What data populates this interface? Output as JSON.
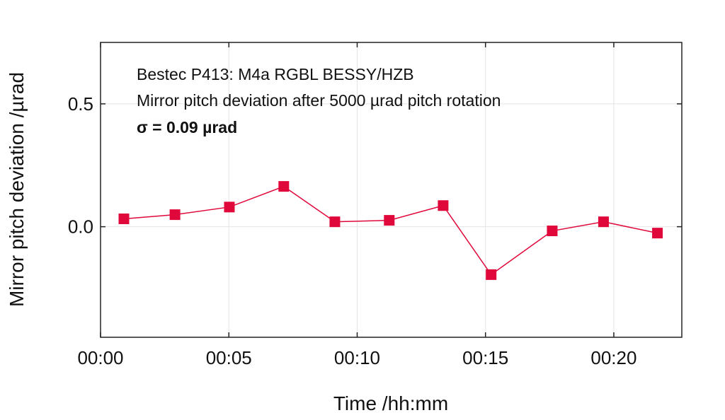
{
  "chart_data": {
    "type": "line",
    "title_lines": [
      "Bestec P413: M4a RGBL BESSY/HZB",
      "Mirror pitch deviation after 5000 µrad pitch rotation"
    ],
    "annotation": "σ = 0.09 µrad",
    "xlabel": "Time /hh:mm",
    "ylabel": "Mirror pitch deviation /µrad",
    "xlim": [
      0,
      22.65
    ],
    "ylim": [
      -0.45,
      0.75
    ],
    "xticks": [
      0,
      5,
      10,
      15,
      20
    ],
    "xtick_labels": [
      "00:00",
      "00:05",
      "00:10",
      "00:15",
      "00:20"
    ],
    "yticks": [
      0.0,
      0.5
    ],
    "ytick_labels": [
      "0.0",
      "0.5"
    ],
    "grid": true,
    "series": [
      {
        "name": "pitch deviation",
        "color": "#e0083a",
        "marker": "square",
        "x": [
          0.91,
          2.9,
          5.02,
          7.14,
          9.13,
          11.25,
          13.35,
          15.22,
          17.6,
          19.6,
          21.7
        ],
        "y": [
          0.032,
          0.049,
          0.08,
          0.164,
          0.02,
          0.026,
          0.086,
          -0.195,
          -0.017,
          0.02,
          -0.026
        ]
      }
    ]
  }
}
